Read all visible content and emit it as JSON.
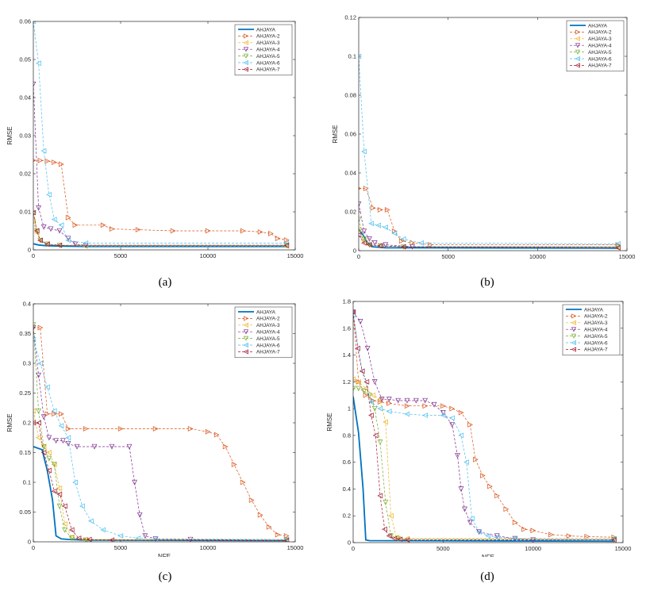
{
  "chart_data": [
    {
      "type": "line",
      "caption": "(a)",
      "xlabel": "NFE",
      "ylabel": "RMSE",
      "xlim": [
        0,
        15000
      ],
      "ylim": [
        0,
        0.06
      ],
      "xticks": [
        0,
        5000,
        10000,
        15000
      ],
      "xtick_labels": [
        "0",
        "5000",
        "10000",
        "15000"
      ],
      "yticks": [
        0,
        0.01,
        0.02,
        0.03,
        0.04,
        0.05,
        0.06
      ],
      "ytick_labels": [
        "0",
        "0.01",
        "0.02",
        "0.03",
        "0.04",
        "0.05",
        "0.06"
      ],
      "legend_position": "top-right",
      "series": [
        {
          "name": "AHJAYA",
          "color": "#0072BD",
          "marker": "none",
          "x": [
            0,
            300,
            700,
            1500,
            3000,
            14500
          ],
          "y": [
            0.0016,
            0.0013,
            0.0011,
            0.001,
            0.0009,
            0.0009
          ]
        },
        {
          "name": "AHJAYA-2",
          "color": "#D95319",
          "marker": "tri-right",
          "x": [
            0,
            400,
            800,
            1200,
            1600,
            2000,
            2400,
            4000,
            4500,
            6000,
            8000,
            10000,
            12000,
            13000,
            13600,
            14000,
            14500
          ],
          "y": [
            0.0235,
            0.0235,
            0.0233,
            0.023,
            0.0225,
            0.0085,
            0.0065,
            0.0065,
            0.0055,
            0.0053,
            0.005,
            0.005,
            0.005,
            0.0047,
            0.0043,
            0.003,
            0.0026
          ]
        },
        {
          "name": "AHJAYA-3",
          "color": "#EDB120",
          "marker": "tri-left",
          "x": [
            0,
            200,
            400,
            800,
            1500,
            3000,
            14500
          ],
          "y": [
            0.0075,
            0.0045,
            0.0025,
            0.0015,
            0.0012,
            0.001,
            0.001
          ]
        },
        {
          "name": "AHJAYA-4",
          "color": "#7E2F8E",
          "marker": "tri-down",
          "x": [
            0,
            300,
            600,
            1000,
            1500,
            2000,
            2400,
            3000,
            14500
          ],
          "y": [
            0.0435,
            0.011,
            0.006,
            0.0055,
            0.005,
            0.003,
            0.0015,
            0.0012,
            0.0012
          ]
        },
        {
          "name": "AHJAYA-5",
          "color": "#77AC30",
          "marker": "tri-down",
          "x": [
            0,
            200,
            400,
            800,
            1500,
            14500
          ],
          "y": [
            0.0095,
            0.005,
            0.0025,
            0.0015,
            0.0012,
            0.0012
          ]
        },
        {
          "name": "AHJAYA-6",
          "color": "#4DBEEE",
          "marker": "tri-left",
          "x": [
            0,
            300,
            600,
            900,
            1200,
            1600,
            2000,
            3000,
            14500
          ],
          "y": [
            0.06,
            0.049,
            0.026,
            0.0145,
            0.008,
            0.0065,
            0.0025,
            0.0018,
            0.0018
          ]
        },
        {
          "name": "AHJAYA-7",
          "color": "#A2142F",
          "marker": "tri-left",
          "x": [
            0,
            200,
            400,
            800,
            1500,
            14500
          ],
          "y": [
            0.0098,
            0.005,
            0.0025,
            0.0015,
            0.0012,
            0.0012
          ]
        }
      ]
    },
    {
      "type": "line",
      "caption": "(b)",
      "xlabel": "NFE",
      "ylabel": "RMSE",
      "xlim": [
        0,
        15000
      ],
      "ylim": [
        0,
        0.12
      ],
      "xticks": [
        0,
        5000,
        10000,
        15000
      ],
      "xtick_labels": [
        "0",
        "5000",
        "10000",
        "15000"
      ],
      "yticks": [
        0,
        0.02,
        0.04,
        0.06,
        0.08,
        0.1,
        0.12
      ],
      "ytick_labels": [
        "0",
        "0.02",
        "0.04",
        "0.06",
        "0.08",
        "0.1",
        "0.12"
      ],
      "legend_position": "top-right",
      "series": [
        {
          "name": "AHJAYA",
          "color": "#0072BD",
          "marker": "none",
          "x": [
            0,
            250,
            500,
            800,
            1500,
            14500
          ],
          "y": [
            0.011,
            0.008,
            0.004,
            0.002,
            0.0015,
            0.0013
          ]
        },
        {
          "name": "AHJAYA-2",
          "color": "#D95319",
          "marker": "tri-right",
          "x": [
            0,
            400,
            800,
            1200,
            1600,
            2000,
            2400,
            3000,
            4000,
            14500
          ],
          "y": [
            0.032,
            0.032,
            0.022,
            0.021,
            0.021,
            0.01,
            0.005,
            0.004,
            0.003,
            0.003
          ]
        },
        {
          "name": "AHJAYA-3",
          "color": "#EDB120",
          "marker": "tri-left",
          "x": [
            0,
            300,
            600,
            1200,
            2500,
            14500
          ],
          "y": [
            0.011,
            0.005,
            0.003,
            0.0025,
            0.002,
            0.002
          ]
        },
        {
          "name": "AHJAYA-4",
          "color": "#7E2F8E",
          "marker": "tri-down",
          "x": [
            0,
            300,
            600,
            900,
            1500,
            3000,
            14500
          ],
          "y": [
            0.024,
            0.01,
            0.006,
            0.004,
            0.003,
            0.002,
            0.002
          ]
        },
        {
          "name": "AHJAYA-5",
          "color": "#77AC30",
          "marker": "tri-down",
          "x": [
            0,
            300,
            600,
            1200,
            2500,
            14500
          ],
          "y": [
            0.016,
            0.006,
            0.003,
            0.0025,
            0.002,
            0.002
          ]
        },
        {
          "name": "AHJAYA-6",
          "color": "#4DBEEE",
          "marker": "tri-left",
          "x": [
            0,
            300,
            700,
            1100,
            1500,
            2000,
            2500,
            3500,
            14500
          ],
          "y": [
            0.1,
            0.051,
            0.014,
            0.013,
            0.012,
            0.009,
            0.006,
            0.004,
            0.0035
          ]
        },
        {
          "name": "AHJAYA-7",
          "color": "#A2142F",
          "marker": "tri-left",
          "x": [
            0,
            300,
            600,
            1200,
            2500,
            14500
          ],
          "y": [
            0.008,
            0.004,
            0.003,
            0.0025,
            0.002,
            0.0015
          ]
        }
      ]
    },
    {
      "type": "line",
      "caption": "(c)",
      "xlabel": "NFE",
      "ylabel": "RMSE",
      "xlim": [
        0,
        15000
      ],
      "ylim": [
        0,
        0.4
      ],
      "xticks": [
        0,
        5000,
        10000,
        15000
      ],
      "xtick_labels": [
        "0",
        "5000",
        "10000",
        "15000"
      ],
      "yticks": [
        0,
        0.05,
        0.1,
        0.15,
        0.2,
        0.25,
        0.3,
        0.35,
        0.4
      ],
      "ytick_labels": [
        "0",
        "0.05",
        "0.1",
        "0.15",
        "0.2",
        "0.25",
        "0.3",
        "0.35",
        "0.4"
      ],
      "legend_position": "top-right",
      "series": [
        {
          "name": "AHJAYA",
          "color": "#0072BD",
          "marker": "none",
          "x": [
            0,
            500,
            800,
            1100,
            1300,
            1600,
            2000,
            3000,
            14500
          ],
          "y": [
            0.16,
            0.155,
            0.12,
            0.07,
            0.01,
            0.005,
            0.004,
            0.003,
            0.002
          ]
        },
        {
          "name": "AHJAYA-2",
          "color": "#D95319",
          "marker": "tri-right",
          "x": [
            0,
            400,
            800,
            1200,
            1600,
            2000,
            3000,
            5000,
            7000,
            9000,
            10000,
            10500,
            11000,
            11500,
            12000,
            12500,
            13000,
            13500,
            14000,
            14500
          ],
          "y": [
            0.36,
            0.36,
            0.215,
            0.215,
            0.215,
            0.19,
            0.19,
            0.19,
            0.19,
            0.19,
            0.185,
            0.18,
            0.16,
            0.13,
            0.1,
            0.07,
            0.045,
            0.025,
            0.012,
            0.01
          ]
        },
        {
          "name": "AHJAYA-3",
          "color": "#EDB120",
          "marker": "tri-left",
          "x": [
            0,
            300,
            600,
            900,
            1200,
            1500,
            1800,
            2200,
            3000,
            14500
          ],
          "y": [
            0.22,
            0.175,
            0.16,
            0.15,
            0.13,
            0.09,
            0.03,
            0.008,
            0.004,
            0.003
          ]
        },
        {
          "name": "AHJAYA-4",
          "color": "#7E2F8E",
          "marker": "tri-down",
          "x": [
            0,
            300,
            600,
            900,
            1300,
            1700,
            2000,
            2500,
            3500,
            4500,
            5500,
            5800,
            6100,
            6400,
            7000,
            9000,
            14500
          ],
          "y": [
            0.36,
            0.28,
            0.21,
            0.175,
            0.17,
            0.17,
            0.165,
            0.16,
            0.16,
            0.16,
            0.16,
            0.1,
            0.045,
            0.01,
            0.005,
            0.004,
            0.003
          ]
        },
        {
          "name": "AHJAYA-5",
          "color": "#77AC30",
          "marker": "tri-down",
          "x": [
            0,
            300,
            600,
            900,
            1200,
            1500,
            1800,
            2200,
            3000,
            14500
          ],
          "y": [
            0.365,
            0.22,
            0.16,
            0.14,
            0.13,
            0.06,
            0.02,
            0.006,
            0.003,
            0.003
          ]
        },
        {
          "name": "AHJAYA-6",
          "color": "#4DBEEE",
          "marker": "tri-left",
          "x": [
            0,
            400,
            800,
            1200,
            1600,
            2000,
            2400,
            2800,
            3300,
            4000,
            5000,
            6000,
            7000,
            14500
          ],
          "y": [
            0.34,
            0.3,
            0.26,
            0.22,
            0.195,
            0.175,
            0.1,
            0.06,
            0.035,
            0.02,
            0.01,
            0.006,
            0.005,
            0.004
          ]
        },
        {
          "name": "AHJAYA-7",
          "color": "#A2142F",
          "marker": "tri-left",
          "x": [
            0,
            300,
            600,
            900,
            1200,
            1500,
            1800,
            2200,
            2600,
            3200,
            4500,
            14500
          ],
          "y": [
            0.2,
            0.2,
            0.15,
            0.12,
            0.085,
            0.08,
            0.06,
            0.02,
            0.006,
            0.004,
            0.003,
            0.002
          ]
        }
      ]
    },
    {
      "type": "line",
      "caption": "(d)",
      "xlabel": "NFE",
      "ylabel": "RMSE",
      "xlim": [
        0,
        15000
      ],
      "ylim": [
        0,
        1.8
      ],
      "xticks": [
        0,
        5000,
        10000,
        15000
      ],
      "xtick_labels": [
        "0",
        "5000",
        "10000",
        "15000"
      ],
      "yticks": [
        0,
        0.2,
        0.4,
        0.6,
        0.8,
        1,
        1.2,
        1.4,
        1.6,
        1.8
      ],
      "ytick_labels": [
        "0",
        "0.2",
        "0.4",
        "0.6",
        "0.8",
        "1",
        "1.2",
        "1.4",
        "1.6",
        "1.8"
      ],
      "legend_position": "top-right",
      "series": [
        {
          "name": "AHJAYA",
          "color": "#0072BD",
          "marker": "none",
          "x": [
            0,
            300,
            550,
            700,
            900,
            14500
          ],
          "y": [
            1.09,
            0.82,
            0.4,
            0.02,
            0.015,
            0.01
          ]
        },
        {
          "name": "AHJAYA-2",
          "color": "#D95319",
          "marker": "tri-right",
          "x": [
            0,
            300,
            700,
            1100,
            1500,
            2000,
            3000,
            4000,
            5000,
            5500,
            6000,
            6500,
            6800,
            7200,
            7600,
            8000,
            8500,
            9000,
            9500,
            10000,
            11000,
            12000,
            13000,
            14500
          ],
          "y": [
            1.72,
            1.2,
            1.1,
            1.06,
            1.05,
            1.04,
            1.02,
            1.02,
            1.02,
            1.0,
            0.97,
            0.88,
            0.62,
            0.5,
            0.42,
            0.35,
            0.25,
            0.15,
            0.1,
            0.09,
            0.06,
            0.05,
            0.045,
            0.04
          ]
        },
        {
          "name": "AHJAYA-3",
          "color": "#EDB120",
          "marker": "tri-left",
          "x": [
            0,
            300,
            700,
            1100,
            1500,
            1800,
            2100,
            2400,
            3000,
            14500
          ],
          "y": [
            1.22,
            1.2,
            1.15,
            1.1,
            1.07,
            0.9,
            0.2,
            0.04,
            0.03,
            0.03
          ]
        },
        {
          "name": "AHJAYA-4",
          "color": "#7E2F8E",
          "marker": "tri-down",
          "x": [
            0,
            400,
            800,
            1200,
            1600,
            2000,
            2500,
            3000,
            3500,
            4000,
            4500,
            5000,
            5500,
            5800,
            6000,
            6200,
            6500,
            7000,
            8000,
            9000,
            10000,
            14500
          ],
          "y": [
            1.72,
            1.65,
            1.45,
            1.2,
            1.07,
            1.07,
            1.06,
            1.06,
            1.06,
            1.06,
            1.03,
            0.97,
            0.88,
            0.65,
            0.4,
            0.25,
            0.15,
            0.08,
            0.05,
            0.03,
            0.02,
            0.02
          ]
        },
        {
          "name": "AHJAYA-5",
          "color": "#77AC30",
          "marker": "tri-down",
          "x": [
            0,
            300,
            600,
            900,
            1200,
            1500,
            1800,
            2100,
            2500,
            14500
          ],
          "y": [
            1.15,
            1.15,
            1.13,
            1.1,
            1.0,
            0.75,
            0.3,
            0.05,
            0.03,
            0.02
          ]
        },
        {
          "name": "AHJAYA-6",
          "color": "#4DBEEE",
          "marker": "tri-left",
          "x": [
            0,
            500,
            1000,
            1500,
            2000,
            3000,
            4000,
            5000,
            5500,
            6000,
            6300,
            6600,
            7000,
            7500,
            8000,
            9000,
            14500
          ],
          "y": [
            1.7,
            1.28,
            1.05,
            1.0,
            0.98,
            0.96,
            0.95,
            0.95,
            0.93,
            0.8,
            0.6,
            0.18,
            0.08,
            0.05,
            0.04,
            0.03,
            0.03
          ]
        },
        {
          "name": "AHJAYA-7",
          "color": "#A2142F",
          "marker": "tri-left",
          "x": [
            0,
            250,
            500,
            750,
            1000,
            1250,
            1500,
            1750,
            2000,
            2300,
            2600,
            3000,
            14500
          ],
          "y": [
            1.72,
            1.45,
            1.28,
            1.2,
            0.95,
            0.8,
            0.35,
            0.1,
            0.05,
            0.03,
            0.025,
            0.02,
            0.02
          ]
        }
      ]
    }
  ]
}
